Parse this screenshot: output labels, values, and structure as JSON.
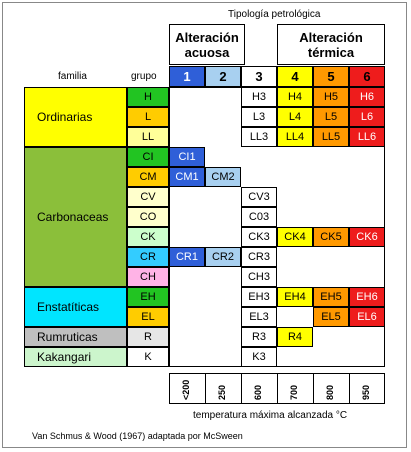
{
  "header": {
    "title": "Tipología petrológica",
    "familia": "familia",
    "grupo": "grupo",
    "acuosa_line1": "Alteración",
    "acuosa_line2": "acuosa",
    "termica_line1": "Alteración",
    "termica_line2": "térmica"
  },
  "columns": [
    {
      "label": "1",
      "color": "#2f5fd8",
      "text": "#ffffff"
    },
    {
      "label": "2",
      "color": "#a8d0f0",
      "text": "#000000"
    },
    {
      "label": "3",
      "color": "#ffffff",
      "text": "#000000"
    },
    {
      "label": "4",
      "color": "#ffff00",
      "text": "#000000"
    },
    {
      "label": "5",
      "color": "#ff9900",
      "text": "#000000"
    },
    {
      "label": "6",
      "color": "#ee1c1c",
      "text": "#000000"
    }
  ],
  "families": [
    {
      "name": "Ordinarias",
      "color": "#ffff00"
    },
    {
      "name": "Carbonaceas",
      "color": "#8bbf3a"
    },
    {
      "name": "Enstatíticas",
      "color": "#00e5ff"
    },
    {
      "name": "Rumruticas",
      "color": "#bfbfbf"
    },
    {
      "name": "Kakangari",
      "color": "#ccf5cc"
    }
  ],
  "groups": [
    {
      "code": "H",
      "color": "#22c422",
      "text": "#000000",
      "cells": [
        "",
        "",
        "H3",
        "H4",
        "H5",
        "H6"
      ]
    },
    {
      "code": "L",
      "color": "#ffcc00",
      "text": "#000000",
      "cells": [
        "",
        "",
        "L3",
        "L4",
        "L5",
        "L6"
      ]
    },
    {
      "code": "LL",
      "color": "#ffff99",
      "text": "#000000",
      "cells": [
        "",
        "",
        "LL3",
        "LL4",
        "LL5",
        "LL6"
      ]
    },
    {
      "code": "CI",
      "color": "#22c422",
      "text": "#000000",
      "cells": [
        "CI1",
        "",
        "",
        "",
        "",
        ""
      ]
    },
    {
      "code": "CM",
      "color": "#ffcc00",
      "text": "#000000",
      "cells": [
        "CM1",
        "CM2",
        "",
        "",
        "",
        ""
      ]
    },
    {
      "code": "CV",
      "color": "#ffffcc",
      "text": "#000000",
      "cells": [
        "",
        "",
        "CV3",
        "",
        "",
        ""
      ]
    },
    {
      "code": "CO",
      "color": "#ffffcc",
      "text": "#000000",
      "cells": [
        "",
        "",
        "C03",
        "",
        "",
        ""
      ]
    },
    {
      "code": "CK",
      "color": "#ccffcc",
      "text": "#000000",
      "cells": [
        "",
        "",
        "CK3",
        "CK4",
        "CK5",
        "CK6"
      ]
    },
    {
      "code": "CR",
      "color": "#33ccff",
      "text": "#000000",
      "cells": [
        "CR1",
        "CR2",
        "CR3",
        "",
        "",
        ""
      ]
    },
    {
      "code": "CH",
      "color": "#ffb3e6",
      "text": "#000000",
      "cells": [
        "",
        "",
        "CH3",
        "",
        "",
        ""
      ]
    },
    {
      "code": "EH",
      "color": "#22c422",
      "text": "#000000",
      "cells": [
        "",
        "",
        "EH3",
        "EH4",
        "EH5",
        "EH6"
      ]
    },
    {
      "code": "EL",
      "color": "#ffcc00",
      "text": "#000000",
      "cells": [
        "",
        "",
        "EL3",
        "",
        "EL5",
        "EL6"
      ]
    },
    {
      "code": "R",
      "color": "#e6e6e6",
      "text": "#000000",
      "cells": [
        "",
        "",
        "R3",
        "R4",
        "",
        ""
      ]
    },
    {
      "code": "K",
      "color": "#ffffff",
      "text": "#000000",
      "cells": [
        "",
        "",
        "K3",
        "",
        "",
        ""
      ]
    }
  ],
  "axis": {
    "ticks": [
      "<200",
      "250",
      "600",
      "700",
      "800",
      "950"
    ],
    "label": "temperatura máxima alcanzada °C"
  },
  "source": "Van Schmus & Wood (1967) adaptada por McSween"
}
